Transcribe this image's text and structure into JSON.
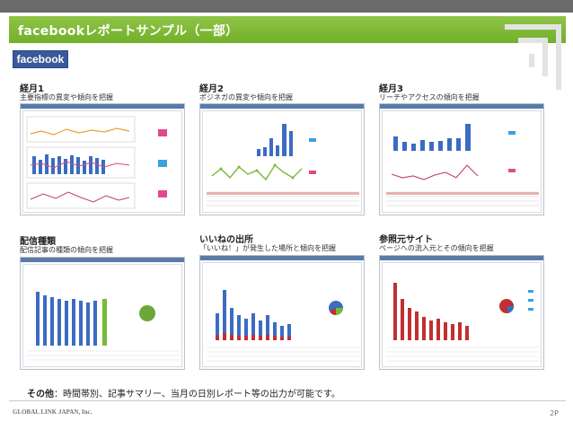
{
  "title": "facebookレポートサンプル（一部）",
  "logo_text": "facebook",
  "panels": [
    {
      "title": "経月1",
      "desc": "主要指標の異変や傾向を把握"
    },
    {
      "title": "経月2",
      "desc": "ポジネガの異変や傾向を把握"
    },
    {
      "title": "経月3",
      "desc": "リーチやアクセスの傾向を把握"
    },
    {
      "title": "配信種類",
      "desc": "配信記事の種類の傾向を把握"
    },
    {
      "title": "いいねの出所",
      "desc": "「いいね！」が発生した場所と傾向を把握"
    },
    {
      "title": "参照元サイト",
      "desc": "ページへの流入元とその傾向を把握"
    }
  ],
  "other": {
    "label": "その他",
    "text": "：時間帯別、記事サマリー、当月の日別レポート等の出力が可能です。"
  },
  "company": "GLOBAL LINK JAPAN, Inc.",
  "page_number": "2P",
  "colors": {
    "accent_green": "#78b32f",
    "facebook_blue": "#3b5998",
    "top_bar": "#6b6b6b"
  }
}
